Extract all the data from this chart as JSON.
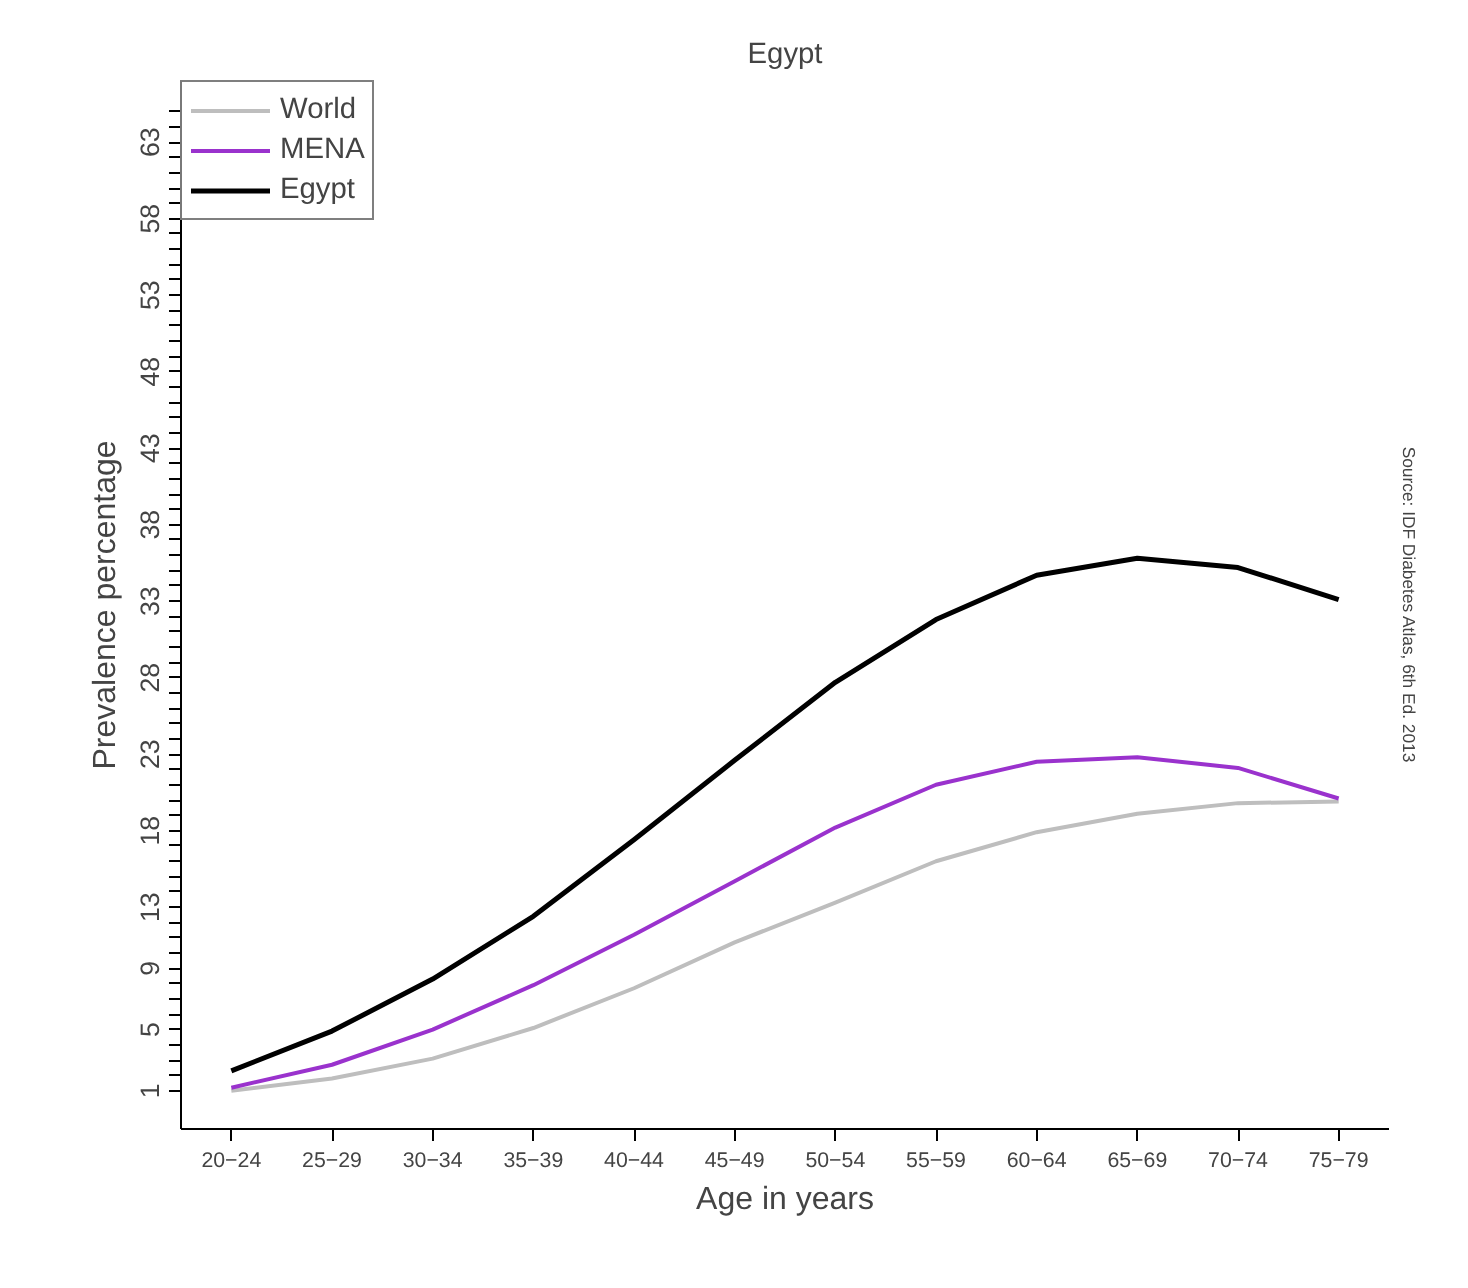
{
  "chart_data": {
    "type": "line",
    "title": "Egypt",
    "xlabel": "Age in years",
    "ylabel": "Prevalence percentage",
    "annotations": [
      "Source: IDF Diabetes Atlas, 6th Ed. 2013"
    ],
    "categories": [
      "20−24",
      "25−29",
      "30−34",
      "35−39",
      "40−44",
      "45−49",
      "50−54",
      "55−59",
      "60−64",
      "65−69",
      "70−74",
      "75−79"
    ],
    "series": [
      {
        "name": "World",
        "color": "#bebebe",
        "values": [
          1.0,
          1.8,
          3.1,
          5.1,
          7.7,
          10.7,
          13.3,
          16.0,
          17.9,
          19.1,
          19.8,
          19.9
        ]
      },
      {
        "name": "MENA",
        "color": "#9a32cd",
        "values": [
          1.2,
          2.7,
          5.0,
          7.9,
          11.2,
          14.7,
          18.2,
          21.0,
          22.5,
          22.8,
          22.1,
          20.1
        ]
      },
      {
        "name": "Egypt",
        "color": "#000000",
        "values": [
          2.3,
          4.9,
          8.3,
          12.4,
          17.4,
          22.6,
          27.7,
          31.8,
          34.7,
          35.8,
          35.2,
          33.1
        ]
      }
    ],
    "ylim": [
      -1.5,
      67
    ],
    "yticks": [
      1,
      {
        "value": 2,
        "label": null
      },
      {
        "value": 3,
        "label": null
      },
      {
        "value": 4,
        "label": null
      },
      5,
      {
        "value": 6,
        "label": null
      },
      {
        "value": 7,
        "label": null
      },
      {
        "value": 8,
        "label": null
      },
      9,
      {
        "value": 10,
        "label": null
      },
      {
        "value": 11,
        "label": null
      },
      {
        "value": 12,
        "label": null
      },
      13,
      {
        "value": 14,
        "label": null
      },
      {
        "value": 15,
        "label": null
      },
      {
        "value": 16,
        "label": null
      },
      {
        "value": 17,
        "label": null
      },
      18,
      {
        "value": 19,
        "label": null
      },
      {
        "value": 20,
        "label": null
      },
      {
        "value": 21,
        "label": null
      },
      {
        "value": 22,
        "label": null
      },
      23,
      {
        "value": 24,
        "label": null
      },
      {
        "value": 25,
        "label": null
      },
      {
        "value": 26,
        "label": null
      },
      {
        "value": 27,
        "label": null
      },
      28,
      {
        "value": 29,
        "label": null
      },
      {
        "value": 30,
        "label": null
      },
      {
        "value": 31,
        "label": null
      },
      {
        "value": 32,
        "label": null
      },
      33,
      {
        "value": 34,
        "label": null
      },
      {
        "value": 35,
        "label": null
      },
      {
        "value": 36,
        "label": null
      },
      {
        "value": 37,
        "label": null
      },
      38,
      {
        "value": 39,
        "label": null
      },
      {
        "value": 40,
        "label": null
      },
      {
        "value": 41,
        "label": null
      },
      {
        "value": 42,
        "label": null
      },
      43,
      {
        "value": 44,
        "label": null
      },
      {
        "value": 45,
        "label": null
      },
      {
        "value": 46,
        "label": null
      },
      {
        "value": 47,
        "label": null
      },
      48,
      {
        "value": 49,
        "label": null
      },
      {
        "value": 50,
        "label": null
      },
      {
        "value": 51,
        "label": null
      },
      {
        "value": 52,
        "label": null
      },
      53,
      {
        "value": 54,
        "label": null
      },
      {
        "value": 55,
        "label": null
      },
      {
        "value": 56,
        "label": null
      },
      {
        "value": 57,
        "label": null
      },
      58,
      {
        "value": 59,
        "label": null
      },
      {
        "value": 60,
        "label": null
      },
      {
        "value": 61,
        "label": null
      },
      {
        "value": 62,
        "label": null
      },
      63,
      {
        "value": 64,
        "label": null
      },
      {
        "value": 65,
        "label": null
      }
    ],
    "legend": "top left",
    "grid": false,
    "marker": "none",
    "line_style": "solid"
  }
}
